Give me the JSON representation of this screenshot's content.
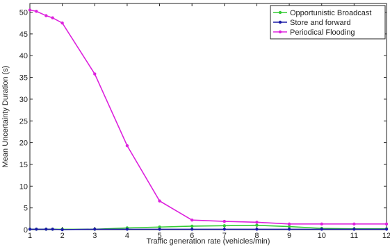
{
  "chart_data": {
    "type": "line",
    "xlabel": "Traffic generation rate (vehicles/min)",
    "ylabel": "Mean Uncertainty Duration (s)",
    "xlim": [
      1,
      12
    ],
    "ylim": [
      0,
      52
    ],
    "x_ticks": [
      1,
      2,
      3,
      4,
      5,
      6,
      7,
      8,
      9,
      10,
      11,
      12
    ],
    "y_ticks": [
      0,
      5,
      10,
      15,
      20,
      25,
      30,
      35,
      40,
      45,
      50
    ],
    "grid": false,
    "legend_position": "top-right",
    "series": [
      {
        "name": "Opportunistic Broadcast",
        "color": "#33cc33",
        "x": [
          1,
          1.2,
          1.5,
          1.7,
          2,
          3,
          4,
          5,
          6,
          7,
          8,
          9,
          10,
          11,
          12
        ],
        "y": [
          0.1,
          0.1,
          0.1,
          0.1,
          0.1,
          0.1,
          0.4,
          0.6,
          0.8,
          0.9,
          1.0,
          0.7,
          0.3,
          0.2,
          0.2
        ]
      },
      {
        "name": "Store and forward",
        "color": "#1a1aa6",
        "x": [
          1,
          1.2,
          1.5,
          1.7,
          2,
          3,
          4,
          5,
          6,
          7,
          8,
          9,
          10,
          11,
          12
        ],
        "y": [
          0.1,
          0.1,
          0.1,
          0.1,
          0.0,
          0.1,
          0.1,
          0.1,
          0.1,
          0.1,
          0.1,
          0.1,
          0.1,
          0.1,
          0.1
        ]
      },
      {
        "name": "Periodical Flooding",
        "color": "#dd22dd",
        "x": [
          1,
          1.2,
          1.5,
          1.7,
          2,
          3,
          4,
          5,
          6,
          7,
          8,
          9,
          10,
          11,
          12
        ],
        "y": [
          50.5,
          50.2,
          49.2,
          48.7,
          47.5,
          35.8,
          19.3,
          6.6,
          2.2,
          1.9,
          1.7,
          1.3,
          1.3,
          1.3,
          1.3
        ]
      }
    ]
  }
}
